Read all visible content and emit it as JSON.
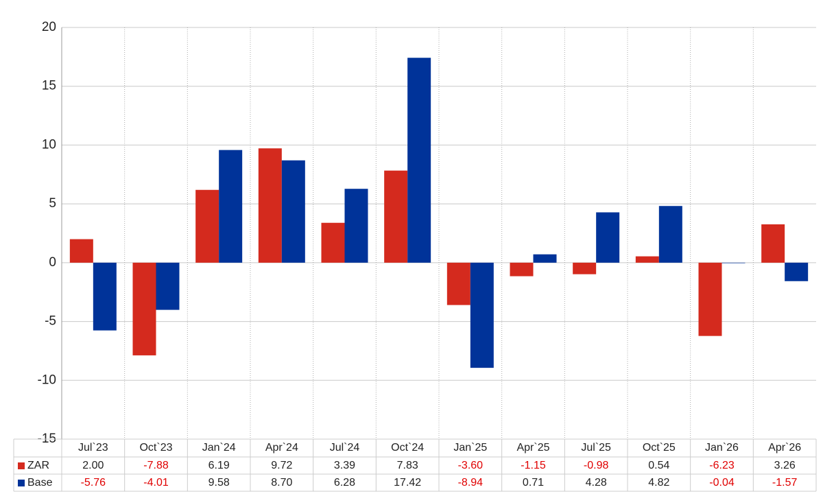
{
  "chart_data": {
    "type": "bar",
    "categories": [
      "Jul`23",
      "Oct`23",
      "Jan`24",
      "Apr`24",
      "Jul`24",
      "Oct`24",
      "Jan`25",
      "Apr`25",
      "Jul`25",
      "Oct`25",
      "Jan`26",
      "Apr`26"
    ],
    "series": [
      {
        "name": "ZAR",
        "color": "#d42a1e",
        "values": [
          2.0,
          -7.88,
          6.19,
          9.72,
          3.39,
          7.83,
          -3.6,
          -1.15,
          -0.98,
          0.54,
          -6.23,
          3.26
        ],
        "value_labels": [
          "2.00",
          "-7.88",
          "6.19",
          "9.72",
          "3.39",
          "7.83",
          "-3.60",
          "-1.15",
          "-0.98",
          "0.54",
          "-6.23",
          "3.26"
        ]
      },
      {
        "name": "Base",
        "color": "#003399",
        "values": [
          -5.76,
          -4.01,
          9.58,
          8.7,
          6.28,
          17.42,
          -8.94,
          0.71,
          4.28,
          4.82,
          -0.04,
          -1.57
        ],
        "value_labels": [
          "-5.76",
          "-4.01",
          "9.58",
          "8.70",
          "6.28",
          "17.42",
          "-8.94",
          "0.71",
          "4.28",
          "4.82",
          "-0.04",
          "-1.57"
        ]
      }
    ],
    "ylim": [
      -15,
      20
    ],
    "yticks": [
      -15,
      -10,
      -5,
      0,
      5,
      10,
      15,
      20
    ],
    "grid": true
  }
}
